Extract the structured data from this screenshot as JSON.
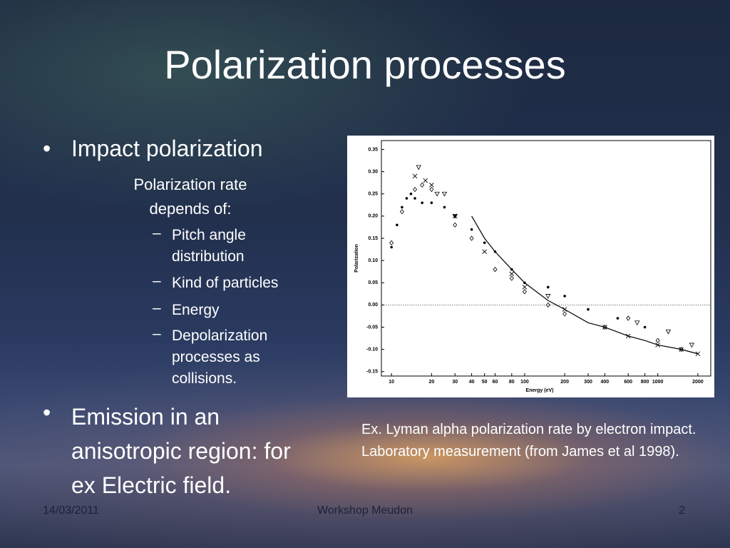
{
  "slide": {
    "title": "Polarization processes",
    "bullets": [
      {
        "text": "Impact polarization",
        "subtext": "Polarization rate depends of:",
        "items": [
          "Pitch angle distribution",
          "Kind of particles",
          "Energy",
          "Depolarization processes as collisions."
        ]
      },
      {
        "text": "Emission in an anisotropic region: for ex Electric field."
      }
    ],
    "caption": "Ex. Lyman alpha polarization rate by electron impact. Laboratory measurement (from James et al 1998).",
    "footer": {
      "date": "14/03/2011",
      "center": "Workshop Meudon",
      "page": "2"
    }
  },
  "chart_data": {
    "type": "scatter",
    "xlabel": "Energy (eV)",
    "ylabel": "Polarization",
    "xscale": "log",
    "xlim": [
      8.4,
      2500
    ],
    "ylim": [
      -0.16,
      0.37
    ],
    "xticks": [
      10,
      20,
      30,
      40,
      50,
      60,
      80,
      100,
      200,
      300,
      400,
      600,
      800,
      1000,
      2000
    ],
    "yticks": [
      {
        "value": 0.35,
        "label": "0.35"
      },
      {
        "value": 0.3,
        "label": "0.30"
      },
      {
        "value": 0.25,
        "label": "0.25"
      },
      {
        "value": 0.2,
        "label": "0.20"
      },
      {
        "value": 0.15,
        "label": "0.15"
      },
      {
        "value": 0.1,
        "label": "0.10"
      },
      {
        "value": 0.05,
        "label": "0.05"
      },
      {
        "value": 0,
        "label": "0.00"
      },
      {
        "value": -0.05,
        "label": "-0.05"
      },
      {
        "value": -0.1,
        "label": "-0.10"
      },
      {
        "value": -0.15,
        "label": "-0.15"
      }
    ],
    "reference_line": 0,
    "color": "#000000",
    "series": [
      {
        "marker": "filled-dot",
        "x": [
          10,
          11,
          12,
          13,
          14,
          15,
          17,
          20,
          25,
          30,
          40,
          50,
          60,
          80,
          100,
          150,
          200,
          300,
          500,
          800
        ],
        "values": [
          0.13,
          0.18,
          0.22,
          0.24,
          0.25,
          0.24,
          0.23,
          0.23,
          0.22,
          0.2,
          0.17,
          0.14,
          0.12,
          0.08,
          0.05,
          0.04,
          0.02,
          -0.01,
          -0.03,
          -0.05
        ]
      },
      {
        "marker": "diamond",
        "x": [
          10,
          12,
          15,
          17,
          20,
          30,
          40,
          60,
          80,
          100,
          150,
          200,
          400,
          600,
          1000,
          1500
        ],
        "values": [
          0.14,
          0.21,
          0.26,
          0.27,
          0.26,
          0.18,
          0.15,
          0.08,
          0.06,
          0.03,
          0.0,
          -0.02,
          -0.05,
          -0.03,
          -0.08,
          -0.1
        ]
      },
      {
        "marker": "cross",
        "x": [
          15,
          18,
          20,
          30,
          50,
          80,
          100,
          200,
          400,
          600,
          1000,
          1500,
          2000
        ],
        "values": [
          0.29,
          0.28,
          0.27,
          0.2,
          0.12,
          0.07,
          0.04,
          -0.01,
          -0.05,
          -0.07,
          -0.09,
          -0.1,
          -0.11
        ]
      },
      {
        "marker": "triangle",
        "x": [
          16,
          22,
          25,
          30,
          150,
          700,
          1200,
          1800
        ],
        "values": [
          0.31,
          0.25,
          0.25,
          0.2,
          0.02,
          -0.04,
          -0.06,
          -0.09
        ]
      },
      {
        "marker": "line",
        "x": [
          40,
          50,
          60,
          80,
          100,
          150,
          200,
          300,
          400,
          600,
          800,
          1000,
          1500,
          2000
        ],
        "values": [
          0.2,
          0.15,
          0.12,
          0.08,
          0.05,
          0.01,
          -0.01,
          -0.04,
          -0.05,
          -0.07,
          -0.08,
          -0.09,
          -0.1,
          -0.11
        ]
      }
    ]
  }
}
